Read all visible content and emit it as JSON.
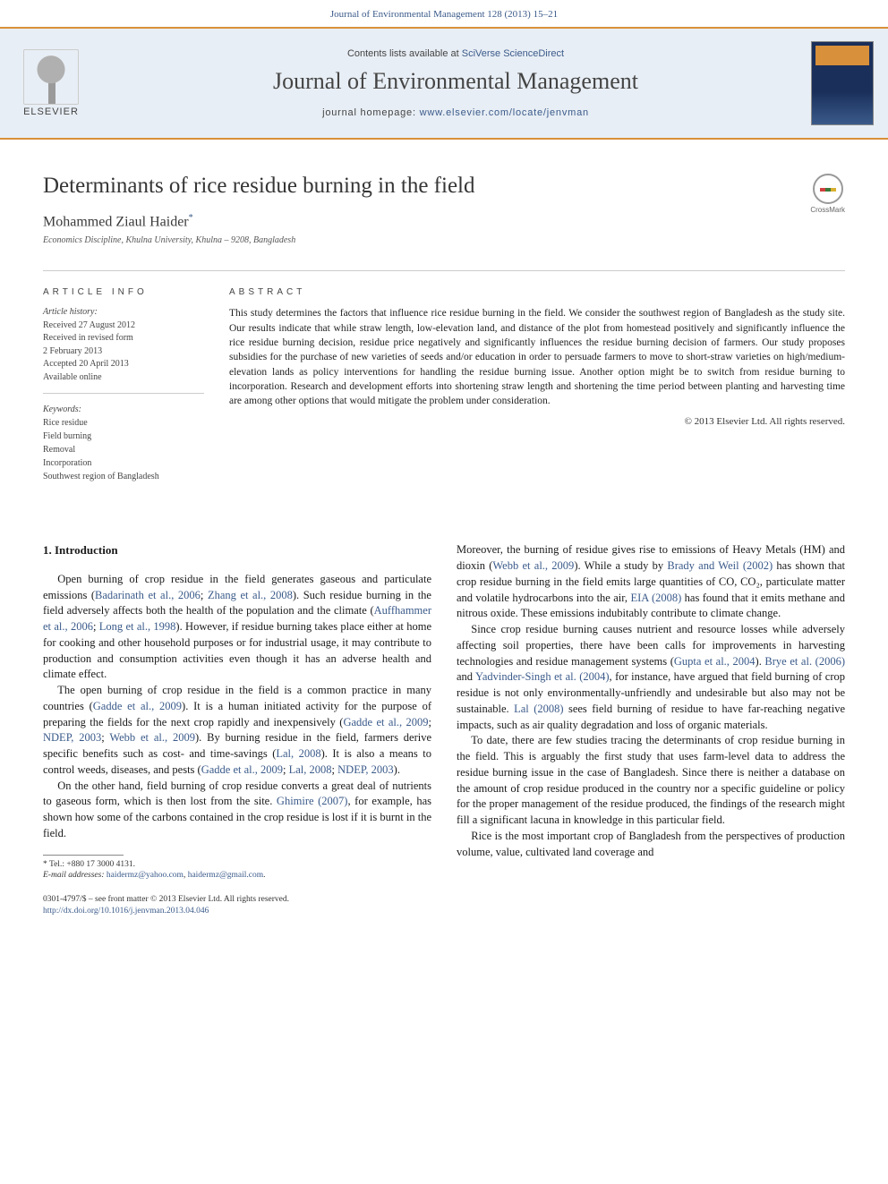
{
  "header": {
    "running_head": "Journal of Environmental Management 128 (2013) 15–21",
    "contents_prefix": "Contents lists available at ",
    "contents_link": "SciVerse ScienceDirect",
    "journal_name": "Journal of Environmental Management",
    "homepage_prefix": "journal homepage: ",
    "homepage_url": "www.elsevier.com/locate/jenvman",
    "publisher_label": "ELSEVIER"
  },
  "crossmark": {
    "label": "CrossMark"
  },
  "article": {
    "title": "Determinants of rice residue burning in the field",
    "author": "Mohammed Ziaul Haider",
    "author_marker": "*",
    "affiliation": "Economics Discipline, Khulna University, Khulna – 9208, Bangladesh"
  },
  "info": {
    "article_info_label": "ARTICLE INFO",
    "abstract_label": "ABSTRACT",
    "history_head": "Article history:",
    "history_lines": [
      "Received 27 August 2012",
      "Received in revised form",
      "2 February 2013",
      "Accepted 20 April 2013",
      "Available online"
    ],
    "keywords_head": "Keywords:",
    "keywords": [
      "Rice residue",
      "Field burning",
      "Removal",
      "Incorporation",
      "Southwest region of Bangladesh"
    ],
    "abstract": "This study determines the factors that influence rice residue burning in the field. We consider the southwest region of Bangladesh as the study site. Our results indicate that while straw length, low-elevation land, and distance of the plot from homestead positively and significantly influence the rice residue burning decision, residue price negatively and significantly influences the residue burning decision of farmers. Our study proposes subsidies for the purchase of new varieties of seeds and/or education in order to persuade farmers to move to short-straw varieties on high/medium-elevation lands as policy interventions for handling the residue burning issue. Another option might be to switch from residue burning to incorporation. Research and development efforts into shortening straw length and shortening the time period between planting and harvesting time are among other options that would mitigate the problem under consideration.",
    "copyright": "© 2013 Elsevier Ltd. All rights reserved."
  },
  "body": {
    "section_heading": "1.  Introduction",
    "col1": {
      "p1a": "Open burning of crop residue in the field generates gaseous and particulate emissions (",
      "p1c1": "Badarinath et al., 2006",
      "p1b": "; ",
      "p1c2": "Zhang et al., 2008",
      "p1c": "). Such residue burning in the field adversely affects both the health of the population and the climate (",
      "p1c3": "Auffhammer et al., 2006",
      "p1d": "; ",
      "p1c4": "Long et al., 1998",
      "p1e": "). However, if residue burning takes place either at home for cooking and other household purposes or for industrial usage, it may contribute to production and consumption activities even though it has an adverse health and climate effect.",
      "p2a": "The open burning of crop residue in the field is a common practice in many countries (",
      "p2c1": "Gadde et al., 2009",
      "p2b": "). It is a human initiated activity for the purpose of preparing the fields for the next crop rapidly and inexpensively (",
      "p2c2": "Gadde et al., 2009",
      "p2c": "; ",
      "p2c3": "NDEP, 2003",
      "p2d": "; ",
      "p2c4": "Webb et al., 2009",
      "p2e": "). By burning residue in the field, farmers derive specific benefits such as cost- and time-savings (",
      "p2c5": "Lal, 2008",
      "p2f": "). It is also a means to control weeds, diseases, and pests (",
      "p2c6": "Gadde et al., 2009",
      "p2g": "; ",
      "p2c7": "Lal, 2008",
      "p2h": "; ",
      "p2c8": "NDEP, 2003",
      "p2i": ").",
      "p3a": "On the other hand, field burning of crop residue converts a great deal of nutrients to gaseous form, which is then lost from the site. ",
      "p3c1": "Ghimire (2007)",
      "p3b": ", for example, has shown how some of the carbons contained in the crop residue is lost if it is burnt in the field."
    },
    "col2": {
      "p1a": "Moreover, the burning of residue gives rise to emissions of Heavy Metals (HM) and dioxin (",
      "p1c1": "Webb et al., 2009",
      "p1b": "). While a study by ",
      "p1c2": "Brady and Weil (2002)",
      "p1c": " has shown that crop residue burning in the field emits large quantities of CO, CO₂, particulate matter and volatile hydrocarbons into the air, ",
      "p1c3": "EIA (2008)",
      "p1d": " has found that it emits methane and nitrous oxide. These emissions indubitably contribute to climate change.",
      "p2a": "Since crop residue burning causes nutrient and resource losses while adversely affecting soil properties, there have been calls for improvements in harvesting technologies and residue management systems (",
      "p2c1": "Gupta et al., 2004",
      "p2b": "). ",
      "p2c2": "Brye et al. (2006)",
      "p2c": " and ",
      "p2c3": "Yadvinder-Singh et al. (2004)",
      "p2d": ", for instance, have argued that field burning of crop residue is not only environmentally-unfriendly and undesirable but also may not be sustainable. ",
      "p2c4": "Lal (2008)",
      "p2e": " sees field burning of residue to have far-reaching negative impacts, such as air quality degradation and loss of organic materials.",
      "p3": "To date, there are few studies tracing the determinants of crop residue burning in the field. This is arguably the first study that uses farm-level data to address the residue burning issue in the case of Bangladesh. Since there is neither a database on the amount of crop residue produced in the country nor a specific guideline or policy for the proper management of the residue produced, the findings of the research might fill a significant lacuna in knowledge in this particular field.",
      "p4": "Rice is the most important crop of Bangladesh from the perspectives of production volume, value, cultivated land coverage and"
    }
  },
  "footnote": {
    "tel_label": "* Tel.: ",
    "tel": "+880 17 3000 4131.",
    "email_label": "E-mail addresses: ",
    "email1": "haidermz@yahoo.com",
    "email_sep": ", ",
    "email2": "haidermz@gmail.com",
    "email_suffix": "."
  },
  "footer": {
    "issn_line": "0301-4797/$ – see front matter © 2013 Elsevier Ltd. All rights reserved.",
    "doi": "http://dx.doi.org/10.1016/j.jenvman.2013.04.046"
  },
  "style": {
    "accent_orange": "#d8903a",
    "link_blue": "#3a5a8a",
    "band_bg": "#e8eef5",
    "body_text": "#1a1a1a",
    "title_fontsize_pt": 25,
    "journal_fontsize_pt": 26,
    "body_fontsize_pt": 12.5,
    "abstract_fontsize_pt": 11.5
  }
}
